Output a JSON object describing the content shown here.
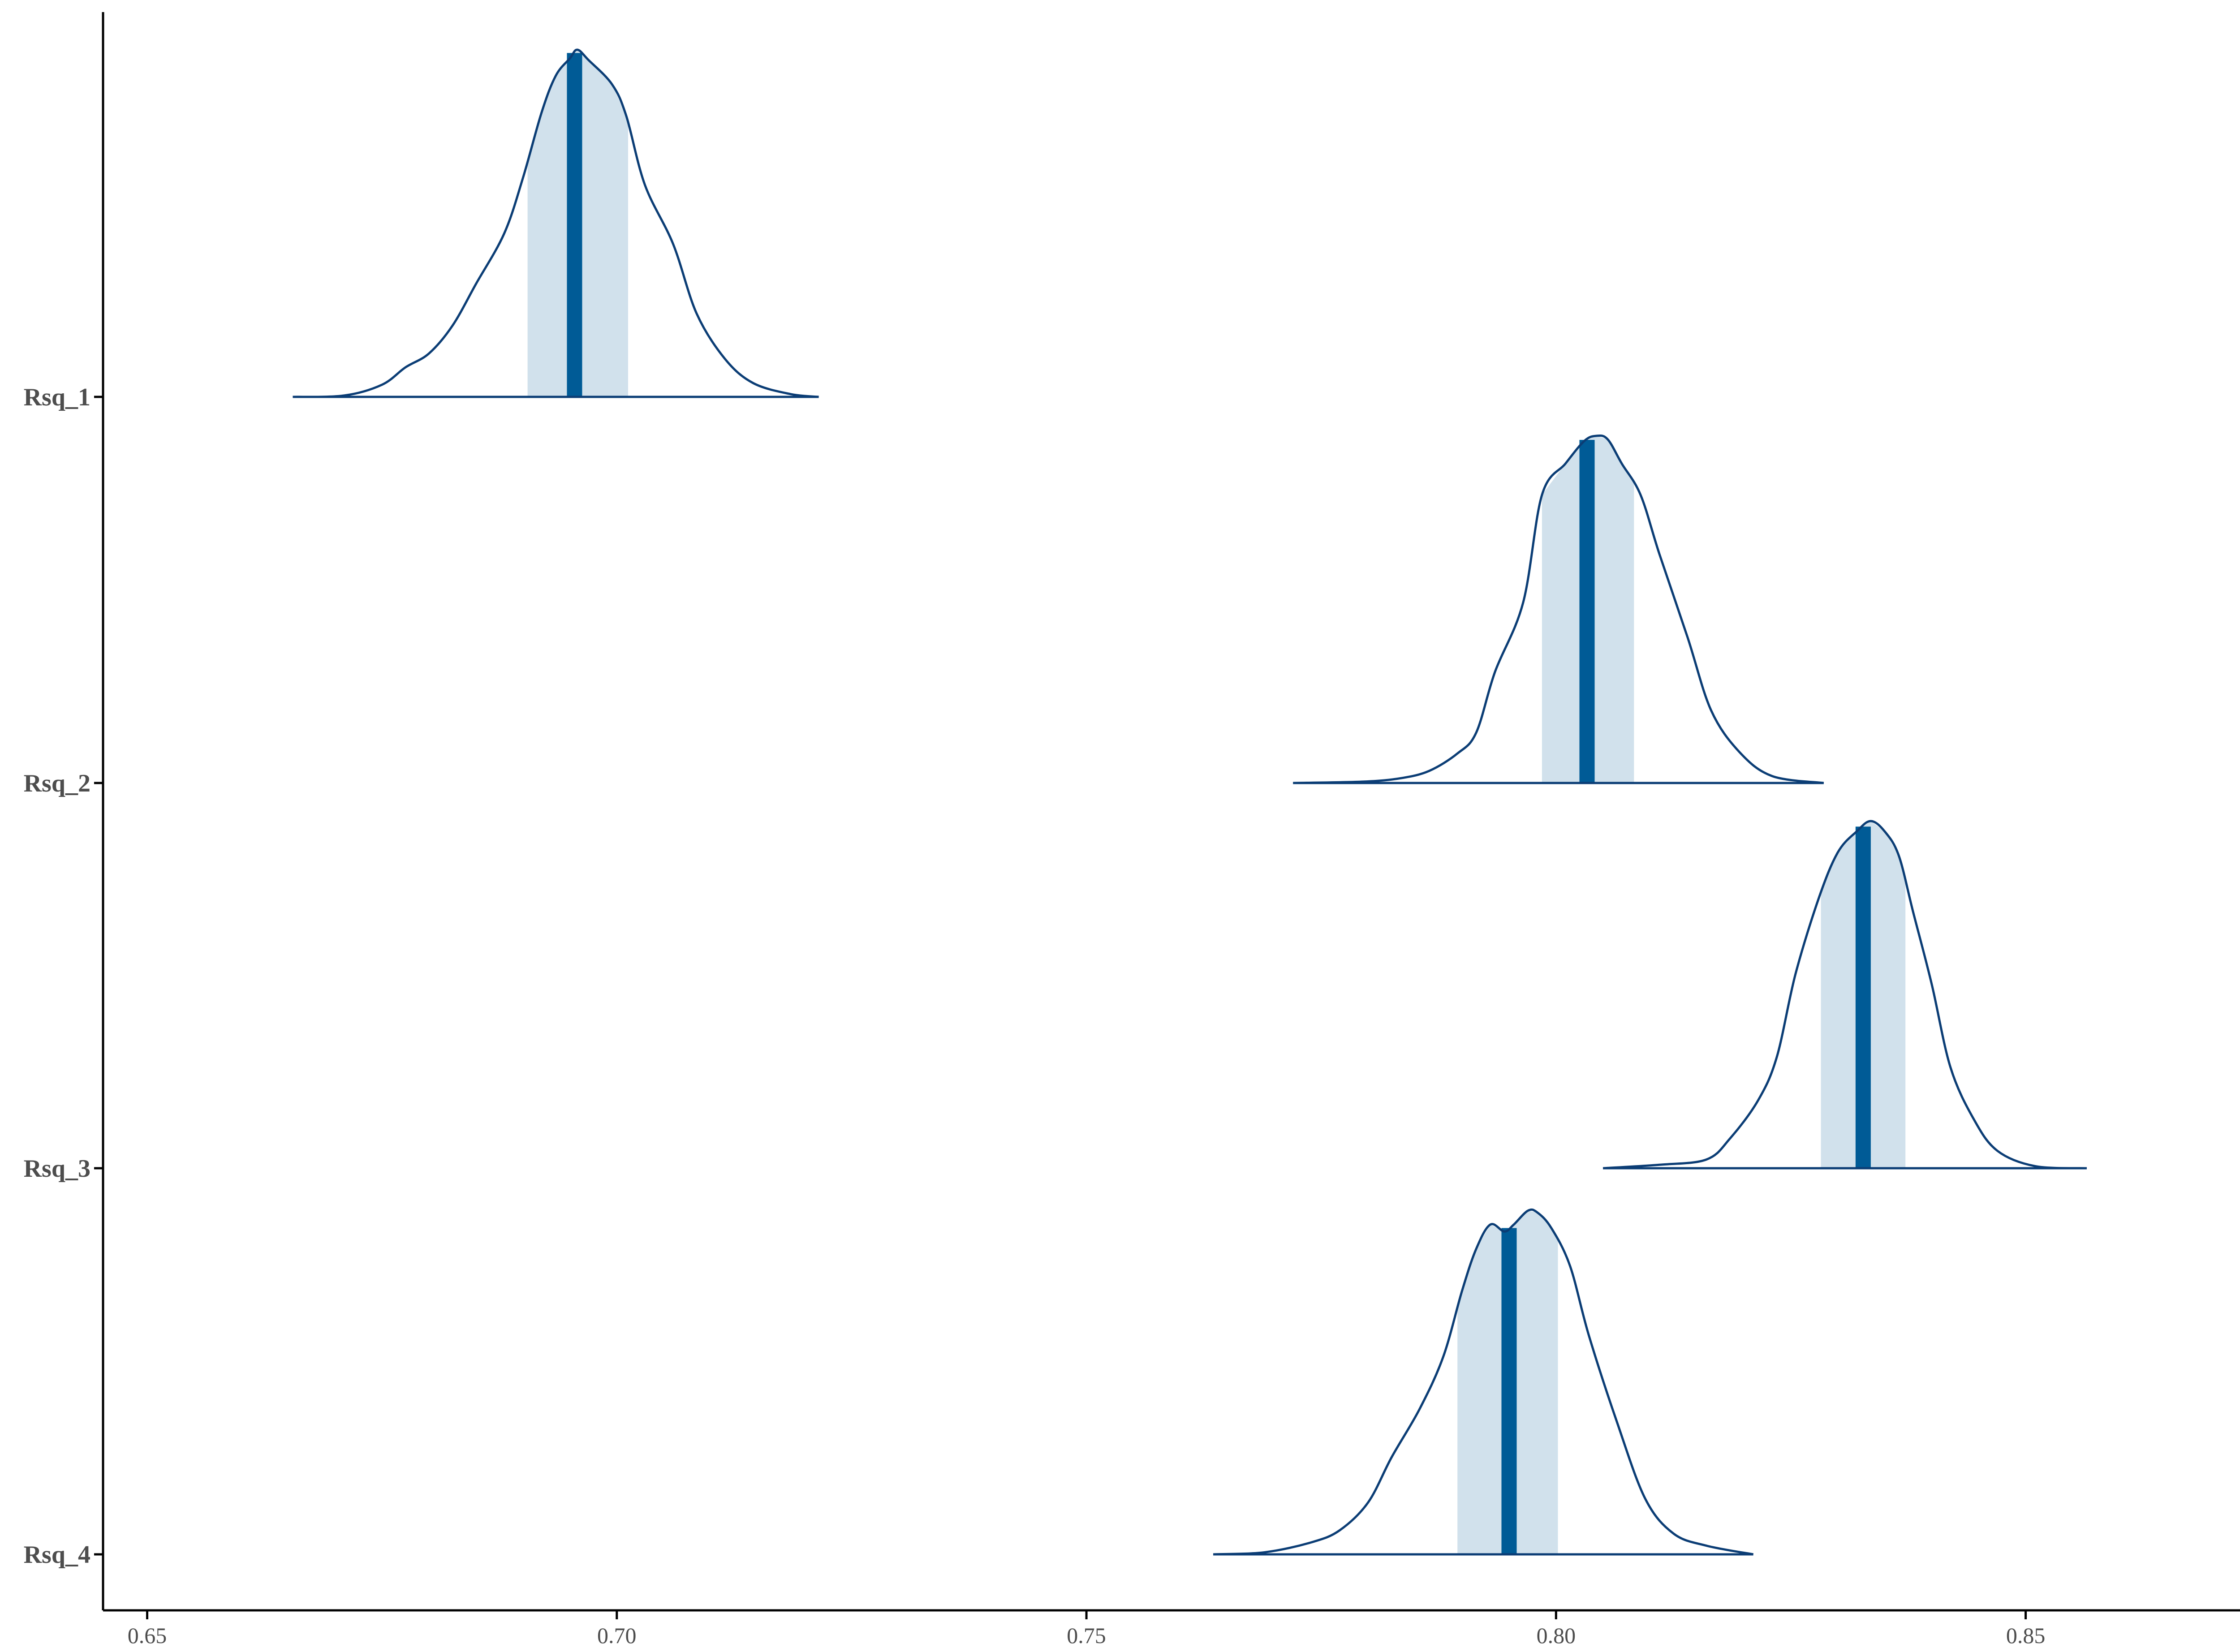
{
  "chart_data": {
    "type": "area",
    "title": "",
    "xlabel": "",
    "ylabel": "",
    "xlim": [
      0.6453,
      0.8753
    ],
    "x_ticks": [
      0.65,
      0.7,
      0.75,
      0.8,
      0.85
    ],
    "x_tick_labels": [
      "0.65",
      "0.70",
      "0.75",
      "0.80",
      "0.85"
    ],
    "grid": false,
    "legend": "none",
    "colors": {
      "outline": "#0b3d75",
      "interval_fill": "#d1e1ec",
      "median_line": "#005b96",
      "axis": "#000000",
      "tick_text": "#4d4d4d"
    },
    "series": [
      {
        "name": "Rsq_1",
        "range": [
          0.6655,
          0.7215
        ],
        "interval": [
          0.6905,
          0.7012
        ],
        "median": 0.6955,
        "density_points": [
          [
            0.6655,
            0.0
          ],
          [
            0.671,
            0.004
          ],
          [
            0.675,
            0.035
          ],
          [
            0.6775,
            0.085
          ],
          [
            0.68,
            0.125
          ],
          [
            0.6825,
            0.205
          ],
          [
            0.685,
            0.325
          ],
          [
            0.688,
            0.47
          ],
          [
            0.69,
            0.63
          ],
          [
            0.692,
            0.82
          ],
          [
            0.6935,
            0.925
          ],
          [
            0.695,
            0.975
          ],
          [
            0.6958,
            1.0
          ],
          [
            0.697,
            0.97
          ],
          [
            0.6995,
            0.9
          ],
          [
            0.701,
            0.81
          ],
          [
            0.703,
            0.61
          ],
          [
            0.706,
            0.44
          ],
          [
            0.7085,
            0.24
          ],
          [
            0.7115,
            0.11
          ],
          [
            0.7145,
            0.04
          ],
          [
            0.7185,
            0.008
          ],
          [
            0.7215,
            0.0
          ]
        ]
      },
      {
        "name": "Rsq_2",
        "range": [
          0.772,
          0.8285
        ],
        "interval": [
          0.7985,
          0.8083
        ],
        "median": 0.8033,
        "density_points": [
          [
            0.772,
            0.0
          ],
          [
            0.7795,
            0.004
          ],
          [
            0.7835,
            0.014
          ],
          [
            0.7865,
            0.035
          ],
          [
            0.7895,
            0.085
          ],
          [
            0.7915,
            0.145
          ],
          [
            0.7935,
            0.32
          ],
          [
            0.7965,
            0.52
          ],
          [
            0.7985,
            0.83
          ],
          [
            0.801,
            0.92
          ],
          [
            0.803,
            0.985
          ],
          [
            0.8043,
            1.0
          ],
          [
            0.8055,
            0.99
          ],
          [
            0.807,
            0.92
          ],
          [
            0.809,
            0.83
          ],
          [
            0.811,
            0.66
          ],
          [
            0.814,
            0.42
          ],
          [
            0.8165,
            0.21
          ],
          [
            0.8195,
            0.09
          ],
          [
            0.823,
            0.02
          ],
          [
            0.8285,
            0.0
          ]
        ]
      },
      {
        "name": "Rsq_3",
        "range": [
          0.805,
          0.8565
        ],
        "interval": [
          0.8282,
          0.8372
        ],
        "median": 0.8327,
        "density_points": [
          [
            0.805,
            0.0
          ],
          [
            0.811,
            0.01
          ],
          [
            0.816,
            0.025
          ],
          [
            0.8185,
            0.085
          ],
          [
            0.8215,
            0.195
          ],
          [
            0.8235,
            0.32
          ],
          [
            0.8255,
            0.56
          ],
          [
            0.828,
            0.78
          ],
          [
            0.83,
            0.91
          ],
          [
            0.832,
            0.97
          ],
          [
            0.8335,
            1.0
          ],
          [
            0.835,
            0.97
          ],
          [
            0.8365,
            0.9
          ],
          [
            0.838,
            0.74
          ],
          [
            0.84,
            0.53
          ],
          [
            0.842,
            0.29
          ],
          [
            0.8445,
            0.14
          ],
          [
            0.847,
            0.05
          ],
          [
            0.851,
            0.006
          ],
          [
            0.8565,
            0.0
          ]
        ]
      },
      {
        "name": "Rsq_4",
        "range": [
          0.7635,
          0.821
        ],
        "interval": [
          0.7895,
          0.8002
        ],
        "median": 0.795,
        "density_points": [
          [
            0.7635,
            0.0
          ],
          [
            0.769,
            0.006
          ],
          [
            0.774,
            0.035
          ],
          [
            0.777,
            0.07
          ],
          [
            0.78,
            0.15
          ],
          [
            0.7825,
            0.28
          ],
          [
            0.7855,
            0.42
          ],
          [
            0.788,
            0.57
          ],
          [
            0.79,
            0.76
          ],
          [
            0.7915,
            0.88
          ],
          [
            0.793,
            0.95
          ],
          [
            0.7945,
            0.93
          ],
          [
            0.7955,
            0.95
          ],
          [
            0.797,
            0.99
          ],
          [
            0.798,
            0.985
          ],
          [
            0.7995,
            0.94
          ],
          [
            0.8015,
            0.83
          ],
          [
            0.8035,
            0.63
          ],
          [
            0.8065,
            0.38
          ],
          [
            0.8095,
            0.16
          ],
          [
            0.8125,
            0.06
          ],
          [
            0.816,
            0.025
          ],
          [
            0.821,
            0.0
          ]
        ]
      }
    ]
  }
}
